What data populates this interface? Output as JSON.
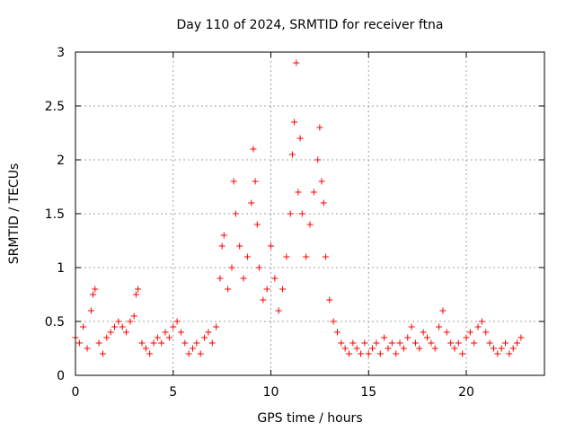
{
  "chart_data": {
    "type": "scatter",
    "title": "Day 110 of 2024, SRMTID for receiver ftna",
    "xlabel": "GPS time / hours",
    "ylabel": "SRMTID / TECUs",
    "xlim": [
      0,
      24
    ],
    "ylim": [
      0,
      3
    ],
    "xticks": [
      0,
      5,
      10,
      15,
      20
    ],
    "yticks": [
      0,
      0.5,
      1,
      1.5,
      2,
      2.5,
      3
    ],
    "xtick_labels": [
      "0",
      "5",
      "10",
      "15",
      "20"
    ],
    "ytick_labels": [
      "0",
      "0.5",
      "1",
      "1.5",
      "2",
      "2.5",
      "3"
    ],
    "grid": true,
    "series": [
      {
        "name": "SRMTID",
        "color": "#ff0000",
        "marker": "plus",
        "x": [
          0.0,
          0.2,
          0.4,
          0.6,
          0.8,
          0.9,
          1.0,
          1.2,
          1.4,
          1.6,
          1.8,
          2.0,
          2.2,
          2.4,
          2.6,
          2.8,
          3.0,
          3.1,
          3.2,
          3.4,
          3.6,
          3.8,
          4.0,
          4.2,
          4.4,
          4.6,
          4.8,
          5.0,
          5.2,
          5.4,
          5.6,
          5.8,
          6.0,
          6.2,
          6.4,
          6.6,
          6.8,
          7.0,
          7.2,
          7.4,
          7.5,
          7.6,
          7.8,
          8.0,
          8.1,
          8.2,
          8.4,
          8.6,
          8.8,
          9.0,
          9.1,
          9.2,
          9.3,
          9.4,
          9.6,
          9.8,
          10.0,
          10.2,
          10.4,
          10.6,
          10.8,
          11.0,
          11.1,
          11.2,
          11.3,
          11.4,
          11.5,
          11.6,
          11.8,
          12.0,
          12.2,
          12.4,
          12.5,
          12.6,
          12.7,
          12.8,
          13.0,
          13.2,
          13.4,
          13.6,
          13.8,
          14.0,
          14.2,
          14.4,
          14.6,
          14.8,
          15.0,
          15.2,
          15.4,
          15.6,
          15.8,
          16.0,
          16.2,
          16.4,
          16.6,
          16.8,
          17.0,
          17.2,
          17.4,
          17.6,
          17.8,
          18.0,
          18.2,
          18.4,
          18.6,
          18.8,
          19.0,
          19.2,
          19.4,
          19.6,
          19.8,
          20.0,
          20.2,
          20.4,
          20.6,
          20.8,
          21.0,
          21.2,
          21.4,
          21.6,
          21.8,
          22.0,
          22.2,
          22.4,
          22.6,
          22.8
        ],
        "y": [
          0.35,
          0.3,
          0.45,
          0.25,
          0.6,
          0.75,
          0.8,
          0.3,
          0.2,
          0.35,
          0.4,
          0.45,
          0.5,
          0.45,
          0.4,
          0.5,
          0.55,
          0.75,
          0.8,
          0.3,
          0.25,
          0.2,
          0.3,
          0.35,
          0.3,
          0.4,
          0.35,
          0.45,
          0.5,
          0.4,
          0.3,
          0.2,
          0.25,
          0.3,
          0.2,
          0.35,
          0.4,
          0.3,
          0.45,
          0.9,
          1.2,
          1.3,
          0.8,
          1.0,
          1.8,
          1.5,
          1.2,
          0.9,
          1.1,
          1.6,
          2.1,
          1.8,
          1.4,
          1.0,
          0.7,
          0.8,
          1.2,
          0.9,
          0.6,
          0.8,
          1.1,
          1.5,
          2.05,
          2.35,
          2.9,
          1.7,
          2.2,
          1.5,
          1.1,
          1.4,
          1.7,
          2.0,
          2.3,
          1.8,
          1.6,
          1.1,
          0.7,
          0.5,
          0.4,
          0.3,
          0.25,
          0.2,
          0.3,
          0.25,
          0.2,
          0.3,
          0.2,
          0.25,
          0.3,
          0.2,
          0.35,
          0.25,
          0.3,
          0.2,
          0.3,
          0.25,
          0.35,
          0.45,
          0.3,
          0.25,
          0.4,
          0.35,
          0.3,
          0.25,
          0.45,
          0.6,
          0.4,
          0.3,
          0.25,
          0.3,
          0.2,
          0.35,
          0.4,
          0.3,
          0.45,
          0.5,
          0.4,
          0.3,
          0.25,
          0.2,
          0.25,
          0.3,
          0.2,
          0.25,
          0.3,
          0.35
        ]
      }
    ]
  }
}
